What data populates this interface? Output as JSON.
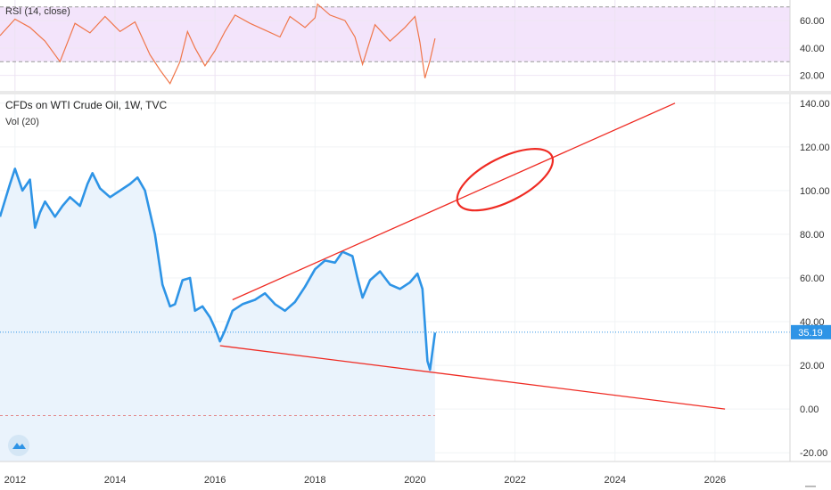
{
  "chart_data": [
    {
      "type": "line",
      "legend": "RSI (14, close)",
      "series": [
        {
          "name": "RSI (14, close)",
          "x": [
            2011.7,
            2012.0,
            2012.3,
            2012.6,
            2012.9,
            2013.2,
            2013.5,
            2013.8,
            2014.1,
            2014.4,
            2014.7,
            2014.9,
            2015.1,
            2015.3,
            2015.45,
            2015.6,
            2015.8,
            2016.0,
            2016.2,
            2016.4,
            2016.7,
            2017.0,
            2017.3,
            2017.5,
            2017.8,
            2018.0,
            2018.05,
            2018.3,
            2018.6,
            2018.8,
            2018.95,
            2019.2,
            2019.5,
            2019.8,
            2020.0,
            2020.1,
            2020.2,
            2020.3,
            2020.4
          ],
          "values": [
            49,
            61,
            55,
            45,
            30,
            58,
            51,
            63,
            52,
            59,
            35,
            24,
            14,
            30,
            52,
            40,
            27,
            38,
            52,
            64,
            58,
            53,
            48,
            63,
            55,
            62,
            72,
            64,
            60,
            48,
            28,
            57,
            45,
            55,
            63,
            44,
            18,
            31,
            47
          ]
        }
      ],
      "yticks": [
        "20.00",
        "40.00",
        "60.00"
      ],
      "bands": [
        30,
        70
      ],
      "ylim": [
        10,
        75
      ],
      "band_color": "#f3e4fb",
      "line_color": "#f0764a"
    },
    {
      "type": "area",
      "title": "CFDs on WTI Crude Oil, 1W, TVC",
      "legend_vol": "Vol (20)",
      "series": [
        {
          "name": "WTI Crude Oil",
          "x": [
            2011.7,
            2011.9,
            2012.0,
            2012.15,
            2012.3,
            2012.4,
            2012.5,
            2012.6,
            2012.8,
            2012.95,
            2013.1,
            2013.3,
            2013.45,
            2013.55,
            2013.7,
            2013.9,
            2014.1,
            2014.3,
            2014.45,
            2014.6,
            2014.8,
            2014.95,
            2015.1,
            2015.2,
            2015.35,
            2015.5,
            2015.6,
            2015.75,
            2015.9,
            2016.0,
            2016.1,
            2016.2,
            2016.35,
            2016.55,
            2016.8,
            2017.0,
            2017.2,
            2017.4,
            2017.6,
            2017.8,
            2018.0,
            2018.2,
            2018.4,
            2018.55,
            2018.75,
            2018.85,
            2018.95,
            2019.1,
            2019.3,
            2019.5,
            2019.7,
            2019.9,
            2020.05,
            2020.15,
            2020.25,
            2020.3,
            2020.4
          ],
          "values": [
            88,
            103,
            110,
            100,
            105,
            83,
            90,
            95,
            88,
            93,
            97,
            93,
            103,
            108,
            101,
            97,
            100,
            103,
            106,
            100,
            80,
            57,
            47,
            48,
            59,
            60,
            45,
            47,
            42,
            37,
            31,
            36,
            45,
            48,
            50,
            53,
            48,
            45,
            49,
            56,
            64,
            68,
            67,
            72,
            70,
            60,
            51,
            59,
            63,
            57,
            55,
            58,
            62,
            55,
            22,
            18,
            35
          ]
        }
      ],
      "last_value": 35.19,
      "yticks": [
        "-20.00",
        "0.00",
        "20.00",
        "40.00",
        "60.00",
        "80.00",
        "100.00",
        "120.00",
        "140.00"
      ],
      "xticks": [
        "2012",
        "2014",
        "2016",
        "2018",
        "2020",
        "2022",
        "2024",
        "2026"
      ],
      "ylim": [
        -24,
        144
      ],
      "xlim": [
        2011.7,
        2027.5
      ],
      "line_color": "#2e94e6",
      "fill_color": "#eaf3fc",
      "annotation_color": "#ef2b23",
      "trendlines": [
        {
          "x": [
            2016.35,
            2025.2
          ],
          "y": [
            50,
            140
          ]
        },
        {
          "x": [
            2016.1,
            2026.2
          ],
          "y": [
            29,
            0
          ]
        }
      ],
      "ellipse": {
        "cx": 2021.8,
        "cy": 105,
        "rx": 1.05,
        "ry": 10,
        "angle_deg": -27
      }
    }
  ]
}
